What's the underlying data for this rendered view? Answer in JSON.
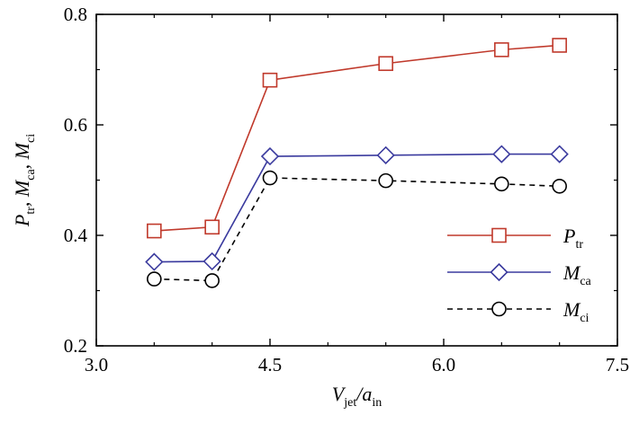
{
  "chart_data": {
    "type": "line",
    "x": [
      3.5,
      4.0,
      4.5,
      5.5,
      6.5,
      7.0
    ],
    "xlim": [
      3.0,
      7.5
    ],
    "ylim": [
      0.2,
      0.8
    ],
    "xticks": [
      "3.0",
      "4.5",
      "6.0",
      "7.5"
    ],
    "yticks": [
      "0.2",
      "0.4",
      "0.6",
      "0.8"
    ],
    "xlabel": {
      "parts": [
        {
          "t": "V"
        },
        {
          "t": "jet",
          "sub": true
        },
        {
          "t": "/"
        },
        {
          "t": "a"
        },
        {
          "t": "in",
          "sub": true
        }
      ]
    },
    "ylabel": {
      "parts": [
        {
          "t": "P"
        },
        {
          "t": "tr",
          "sub": true
        },
        {
          "t": ", M"
        },
        {
          "t": "ca",
          "sub": true
        },
        {
          "t": ", M"
        },
        {
          "t": "ci",
          "sub": true
        }
      ]
    },
    "grid": false,
    "legend_position": "lower-right",
    "series": [
      {
        "name": "P",
        "sub": "tr",
        "values": [
          0.408,
          0.415,
          0.681,
          0.711,
          0.736,
          0.744
        ],
        "color": "#c0392b",
        "marker": "square",
        "dash": "solid"
      },
      {
        "name": "M",
        "sub": "ca",
        "values": [
          0.352,
          0.353,
          0.543,
          0.545,
          0.547,
          0.547
        ],
        "color": "#3a3a9e",
        "marker": "diamond",
        "dash": "solid"
      },
      {
        "name": "M",
        "sub": "ci",
        "values": [
          0.321,
          0.318,
          0.504,
          0.499,
          0.493,
          0.489
        ],
        "color": "#000000",
        "marker": "circle",
        "dash": "dashed"
      }
    ]
  }
}
